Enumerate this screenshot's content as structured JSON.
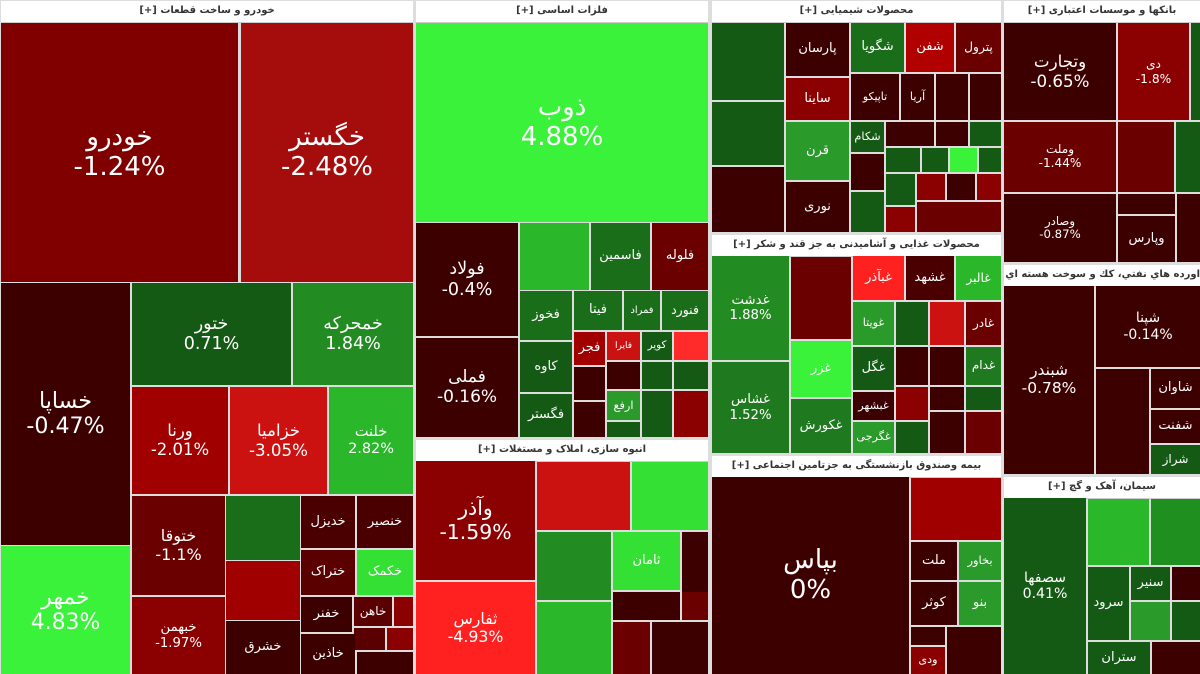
{
  "sectors": [
    {
      "title": "خودرو و ساخت قطعات [+]",
      "tiles": [
        {
          "name": "خودرو",
          "change": "-1.24%",
          "color": "#800000"
        },
        {
          "name": "خگستر",
          "change": "-2.48%",
          "color": "#a50d0d"
        },
        {
          "name": "خساپا",
          "change": "-0.47%",
          "color": "#3d0000"
        },
        {
          "name": "خمهر",
          "change": "4.83%",
          "color": "#39f239"
        },
        {
          "name": "ختور",
          "change": "0.71%",
          "color": "#145a14"
        },
        {
          "name": "خمحرکه",
          "change": "1.84%",
          "color": "#228b22"
        },
        {
          "name": "ورنا",
          "change": "-2.01%",
          "color": "#a00000"
        },
        {
          "name": "خزامیا",
          "change": "-3.05%",
          "color": "#cc1111"
        },
        {
          "name": "خلنت",
          "change": "2.82%",
          "color": "#2ab82a"
        },
        {
          "name": "ختوقا",
          "change": "-1.1%",
          "color": "#6b0000"
        },
        {
          "name": "خبهمن",
          "change": "-1.97%",
          "color": "#8b0000"
        },
        {
          "name": "خدیزل",
          "color": "#4a0000"
        },
        {
          "name": "خنصیر",
          "color": "#4a0000"
        },
        {
          "name": "ختراک",
          "color": "#5a0000"
        },
        {
          "name": "خکمک",
          "color": "#33e033"
        },
        {
          "name": "خفنر",
          "color": "#3d0000"
        },
        {
          "name": "خاهن",
          "color": "#5a0000"
        },
        {
          "name": "خاذین",
          "color": "#3d0000"
        },
        {
          "name": "خشرق",
          "color": "#3d0000"
        }
      ]
    },
    {
      "title": "فلزات اساسی [+]",
      "tiles": [
        {
          "name": "ذوب",
          "change": "4.88%",
          "color": "#39f239"
        },
        {
          "name": "فولاد",
          "change": "-0.4%",
          "color": "#3d0000"
        },
        {
          "name": "فملی",
          "change": "-0.16%",
          "color": "#3d0000"
        },
        {
          "name": "فاسمین",
          "color": "#1a6e1a"
        },
        {
          "name": "فلوله",
          "color": "#6b0000"
        },
        {
          "name": "فخوز",
          "color": "#1a6e1a"
        },
        {
          "name": "فیتا",
          "color": "#1a6e1a"
        },
        {
          "name": "فمراد",
          "color": "#1a6e1a"
        },
        {
          "name": "فنورد",
          "color": "#1a6e1a"
        },
        {
          "name": "کاوه",
          "color": "#145a14"
        },
        {
          "name": "فگستر",
          "color": "#145a14"
        },
        {
          "name": "فجر",
          "color": "#a00000"
        },
        {
          "name": "فایرا",
          "color": "#cc1111"
        },
        {
          "name": "کویر",
          "color": "#145a14"
        },
        {
          "name": "ارفع",
          "color": "#2a9a2a"
        }
      ]
    },
    {
      "title": "انبوه سازی، املاک و مستغلات [+]",
      "tiles": [
        {
          "name": "وآذر",
          "change": "-1.59%",
          "color": "#8b0000"
        },
        {
          "name": "ثفارس",
          "change": "-4.93%",
          "color": "#ff2020"
        },
        {
          "name": "ثامان",
          "color": "#33e033"
        }
      ]
    },
    {
      "title": "محصولات شیمیایی [+]",
      "tiles": [
        {
          "name": "پترول",
          "color": "#6b0000"
        },
        {
          "name": "شفن",
          "color": "#b00000"
        },
        {
          "name": "شگویا",
          "color": "#1a6e1a"
        },
        {
          "name": "پارسان",
          "color": "#3d0000"
        },
        {
          "name": "ساینا",
          "color": "#8b0000"
        },
        {
          "name": "تاپیکو",
          "color": "#3d0000"
        },
        {
          "name": "آریا",
          "color": "#3d0000"
        },
        {
          "name": "قرن",
          "color": "#2a9a2a"
        },
        {
          "name": "شکام",
          "color": "#145a14"
        },
        {
          "name": "نوری",
          "color": "#3d0000"
        }
      ]
    },
    {
      "title": "محصولات غذایی و آشامیدنی به جز قند و شکر [+]",
      "tiles": [
        {
          "name": "غدشت",
          "change": "1.88%",
          "color": "#228b22"
        },
        {
          "name": "غشاس",
          "change": "1.52%",
          "color": "#1f7a1f"
        },
        {
          "name": "غزر",
          "color": "#39f239"
        },
        {
          "name": "غکورش",
          "color": "#1f7a1f"
        },
        {
          "name": "غبآذر",
          "color": "#ff2020"
        },
        {
          "name": "غشهد",
          "color": "#4a0000"
        },
        {
          "name": "غالبر",
          "color": "#2ab82a"
        },
        {
          "name": "غویتا",
          "color": "#2a9a2a"
        },
        {
          "name": "غگل",
          "color": "#145a14"
        },
        {
          "name": "غبشهر",
          "color": "#3d0000"
        },
        {
          "name": "غگرجی",
          "color": "#2a9a2a"
        },
        {
          "name": "غادر",
          "color": "#6b0000"
        },
        {
          "name": "غدام",
          "color": "#1f7a1f"
        }
      ]
    },
    {
      "title": "بیمه وصندوق بازنشستگی به جزتامین اجتماعی [+]",
      "tiles": [
        {
          "name": "بپاس",
          "change": "0%",
          "color": "#3d0000"
        },
        {
          "name": "ملت",
          "color": "#3d0000"
        },
        {
          "name": "بخاور",
          "color": "#2a9a2a"
        },
        {
          "name": "کوثر",
          "color": "#3d0000"
        },
        {
          "name": "بنو",
          "color": "#2a9a2a"
        },
        {
          "name": "ودی",
          "color": "#8b0000"
        }
      ]
    },
    {
      "title": "بانکها و موسسات اعتباری [+]",
      "tiles": [
        {
          "name": "وتجارت",
          "change": "-0.65%",
          "color": "#3d0000"
        },
        {
          "name": "دی",
          "change": "-1.8%",
          "color": "#8b0000"
        },
        {
          "name": "وملت",
          "change": "-1.44%",
          "color": "#6b0000"
        },
        {
          "name": "وصادر",
          "change": "-0.87%",
          "color": "#3d0000"
        },
        {
          "name": "وپارس",
          "color": "#3d0000"
        }
      ]
    },
    {
      "title": "اورده هاي نفتي، كك و سوخت هسته اي [+]",
      "tiles": [
        {
          "name": "شبندر",
          "change": "-0.78%",
          "color": "#3d0000"
        },
        {
          "name": "شپنا",
          "change": "-0.14%",
          "color": "#3d0000"
        },
        {
          "name": "شاوان",
          "color": "#3d0000"
        },
        {
          "name": "شفنت",
          "color": "#3d0000"
        },
        {
          "name": "شراز",
          "color": "#145a14"
        }
      ]
    },
    {
      "title": "سیمان، آهک و گچ [+]",
      "tiles": [
        {
          "name": "سصفها",
          "change": "0.41%",
          "color": "#145a14"
        },
        {
          "name": "سرود",
          "color": "#145a14"
        },
        {
          "name": "سنیر",
          "color": "#145a14"
        },
        {
          "name": "ستران",
          "color": "#145a14"
        }
      ]
    }
  ]
}
